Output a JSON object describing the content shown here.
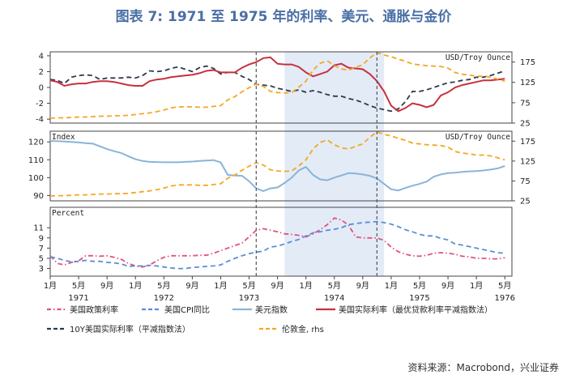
{
  "title": "图表 7:  1971 至 1975 年的利率、美元、通胀与金价",
  "source": "资料来源：Macrobond，兴业证券",
  "chart_data": {
    "type": "line",
    "x_domain": [
      0,
      65
    ],
    "x_unit": "months since Jan 1971",
    "x_ticks": [
      {
        "x": 0,
        "label": "1月"
      },
      {
        "x": 4,
        "label": "5月"
      },
      {
        "x": 8,
        "label": "9月"
      },
      {
        "x": 12,
        "label": "1月"
      },
      {
        "x": 16,
        "label": "5月"
      },
      {
        "x": 20,
        "label": "9月"
      },
      {
        "x": 24,
        "label": "1月"
      },
      {
        "x": 28,
        "label": "5月"
      },
      {
        "x": 32,
        "label": "9月"
      },
      {
        "x": 36,
        "label": "1月"
      },
      {
        "x": 40,
        "label": "5月"
      },
      {
        "x": 44,
        "label": "9月"
      },
      {
        "x": 48,
        "label": "1月"
      },
      {
        "x": 52,
        "label": "5月"
      },
      {
        "x": 56,
        "label": "9月"
      },
      {
        "x": 60,
        "label": "1月"
      },
      {
        "x": 64,
        "label": "5月"
      }
    ],
    "year_labels": [
      {
        "x": 4,
        "label": "1971"
      },
      {
        "x": 16,
        "label": "1972"
      },
      {
        "x": 28,
        "label": "1973"
      },
      {
        "x": 40,
        "label": "1974"
      },
      {
        "x": 52,
        "label": "1975"
      },
      {
        "x": 64,
        "label": "1976"
      }
    ],
    "shaded_x": [
      33,
      47
    ],
    "vlines_x": [
      29,
      46
    ],
    "panels": [
      {
        "key": "rates",
        "ylim": [
          -4.5,
          4.5
        ],
        "yticks": [
          4,
          2,
          0,
          -2,
          -4
        ],
        "label_left": "",
        "label_right": "USD/Troy Ounce",
        "right_ylim": [
          25,
          200
        ],
        "right_ticks": [
          175,
          125,
          75,
          25
        ],
        "series": [
          {
            "name": "10Y美国实际利率（平减指数法）",
            "axis": "left",
            "color": "#2e3a4a",
            "style": "dash",
            "values": [
              1.0,
              0.9,
              0.5,
              1.3,
              1.5,
              1.6,
              1.5,
              1.0,
              1.2,
              1.2,
              1.2,
              1.3,
              1.2,
              1.5,
              2.1,
              2.0,
              2.1,
              2.4,
              2.6,
              2.3,
              2.0,
              2.5,
              2.7,
              2.4,
              1.7,
              1.9,
              1.9,
              1.4,
              1.0,
              0.4,
              0.3,
              0.2,
              -0.1,
              -0.3,
              -0.5,
              -0.3,
              -0.6,
              -0.4,
              -0.6,
              -0.9,
              -1.1,
              -1.1,
              -1.4,
              -1.6,
              -1.9,
              -2.3,
              -2.6,
              -2.8,
              -3.0,
              -2.7,
              -1.8,
              -0.5,
              -0.5,
              -0.3,
              0.0,
              0.3,
              0.6,
              0.7,
              0.9,
              1.0,
              1.3,
              1.3,
              1.5,
              1.8,
              2.1
            ]
          },
          {
            "name": "美国实际利率（最优贷款利率平减指数法）",
            "axis": "left",
            "color": "#c8303f",
            "style": "solid",
            "values": [
              0.9,
              0.7,
              0.2,
              0.4,
              0.5,
              0.5,
              0.7,
              0.8,
              0.8,
              0.7,
              0.5,
              0.3,
              0.2,
              0.2,
              0.8,
              1.0,
              1.1,
              1.3,
              1.4,
              1.5,
              1.6,
              1.8,
              2.1,
              2.2,
              1.9,
              1.9,
              1.9,
              2.5,
              2.9,
              3.2,
              3.7,
              3.8,
              3.0,
              2.9,
              2.9,
              2.6,
              1.9,
              1.4,
              1.7,
              2.0,
              2.8,
              3.0,
              2.5,
              2.4,
              2.3,
              1.7,
              0.8,
              -0.5,
              -2.3,
              -3.0,
              -2.6,
              -2.0,
              -2.2,
              -2.5,
              -2.2,
              -1.0,
              -0.6,
              0.0,
              0.3,
              0.5,
              0.7,
              0.9,
              0.9,
              1.0,
              1.1
            ]
          },
          {
            "name": "伦敦金, rhs",
            "axis": "right",
            "color": "#f5a623",
            "style": "dash",
            "values": [
              37,
              38,
              38,
              39,
              40,
              40,
              41,
              42,
              42,
              43,
              43,
              44,
              46,
              48,
              50,
              53,
              57,
              62,
              65,
              65,
              65,
              64,
              64,
              66,
              68,
              82,
              90,
              102,
              112,
              121,
              115,
              103,
              100,
              99,
              100,
              113,
              128,
              155,
              172,
              178,
              166,
              158,
              155,
              162,
              168,
              185,
              198,
              192,
              188,
              182,
              177,
              170,
              168,
              166,
              165,
              164,
              160,
              149,
              145,
              143,
              140,
              140,
              138,
              133,
              128
            ]
          }
        ]
      },
      {
        "key": "dollar",
        "ylim": [
          87,
          126
        ],
        "yticks": [
          120,
          110,
          100,
          90
        ],
        "label_left": "Index",
        "label_right": "USD/Troy Ounce",
        "right_ylim": [
          25,
          200
        ],
        "right_ticks": [
          175,
          125,
          75,
          25
        ],
        "series": [
          {
            "name": "美元指数",
            "axis": "left",
            "color": "#8ab4d8",
            "style": "solid",
            "values": [
              120.5,
              120.4,
              120.2,
              120.0,
              119.7,
              119.3,
              119.0,
              117.5,
              116.0,
              114.8,
              113.8,
              112.0,
              110.3,
              109.3,
              108.8,
              108.7,
              108.6,
              108.6,
              108.6,
              108.8,
              109.0,
              109.3,
              109.6,
              109.8,
              108.5,
              101.5,
              101.2,
              101.0,
              98.0,
              94.0,
              92.5,
              94.0,
              94.5,
              97.0,
              100.0,
              104.0,
              106.0,
              101.5,
              99.0,
              98.5,
              100.0,
              101.2,
              102.5,
              102.3,
              101.8,
              101.0,
              99.5,
              96.5,
              93.5,
              92.8,
              94.2,
              95.5,
              96.5,
              97.8,
              100.5,
              101.8,
              102.5,
              102.8,
              103.2,
              103.5,
              103.7,
              104.0,
              104.5,
              105.2,
              106.5
            ]
          },
          {
            "name": "伦敦金, rhs",
            "axis": "right",
            "color": "#f5a623",
            "style": "dash",
            "values": [
              37,
              38,
              38,
              39,
              40,
              40,
              41,
              42,
              42,
              43,
              43,
              44,
              46,
              48,
              50,
              53,
              57,
              62,
              65,
              65,
              65,
              64,
              64,
              66,
              68,
              82,
              90,
              102,
              112,
              121,
              115,
              103,
              100,
              99,
              100,
              113,
              128,
              155,
              172,
              178,
              166,
              158,
              155,
              162,
              168,
              185,
              198,
              192,
              188,
              182,
              177,
              170,
              168,
              166,
              165,
              164,
              160,
              149,
              145,
              143,
              140,
              140,
              138,
              133,
              128
            ]
          }
        ]
      },
      {
        "key": "inflation",
        "ylim": [
          1.5,
          15
        ],
        "yticks": [
          11,
          9,
          7,
          5,
          3
        ],
        "label_left": "Percent",
        "label_right": "",
        "series": [
          {
            "name": "美国政策利率",
            "axis": "left",
            "color": "#e2527c",
            "style": "dashdot",
            "values": [
              5.5,
              4.0,
              3.7,
              4.2,
              4.5,
              5.5,
              5.5,
              5.4,
              5.5,
              5.2,
              4.8,
              4.0,
              3.5,
              3.3,
              3.7,
              4.5,
              5.2,
              5.5,
              5.5,
              5.5,
              5.5,
              5.6,
              5.6,
              6.0,
              6.5,
              7.0,
              7.5,
              8.0,
              9.2,
              10.5,
              10.8,
              10.5,
              10.2,
              9.8,
              9.7,
              9.5,
              9.2,
              9.8,
              10.6,
              11.6,
              12.9,
              12.5,
              11.5,
              9.2,
              9.0,
              9.0,
              9.0,
              8.5,
              7.2,
              6.3,
              5.8,
              5.5,
              5.4,
              5.6,
              6.0,
              6.1,
              6.0,
              5.8,
              5.4,
              5.3,
              5.0,
              5.0,
              4.9,
              4.9,
              5.1
            ]
          },
          {
            "name": "美国CPI同比",
            "axis": "left",
            "color": "#5b8dd6",
            "style": "dash",
            "values": [
              5.3,
              5.0,
              4.6,
              4.3,
              4.4,
              4.6,
              4.4,
              4.4,
              4.2,
              4.1,
              3.9,
              3.4,
              3.5,
              3.5,
              3.6,
              3.5,
              3.3,
              3.1,
              3.0,
              3.0,
              3.2,
              3.3,
              3.4,
              3.5,
              3.7,
              4.4,
              5.0,
              5.5,
              5.9,
              6.2,
              6.4,
              7.2,
              7.4,
              7.8,
              8.3,
              8.7,
              9.4,
              10.0,
              10.2,
              10.5,
              10.7,
              11.0,
              11.6,
              11.8,
              12.0,
              12.1,
              12.2,
              12.0,
              11.7,
              11.2,
              10.6,
              10.2,
              9.7,
              9.4,
              9.4,
              8.9,
              8.6,
              7.8,
              7.6,
              7.3,
              7.0,
              6.7,
              6.4,
              6.1,
              6.0
            ]
          }
        ]
      }
    ],
    "legend": [
      {
        "name": "美国政策利率",
        "color": "#e2527c",
        "style": "dashdot"
      },
      {
        "name": "美国CPI同比",
        "color": "#5b8dd6",
        "style": "dash"
      },
      {
        "name": "美元指数",
        "color": "#8ab4d8",
        "style": "solid"
      },
      {
        "name": "美国实际利率（最优贷款利率平减指数法）",
        "color": "#c8303f",
        "style": "solid"
      },
      {
        "name": "10Y美国实际利率（平减指数法）",
        "color": "#2e3a4a",
        "style": "dash"
      },
      {
        "name": "伦敦金, rhs",
        "color": "#f5a623",
        "style": "dash"
      }
    ]
  }
}
